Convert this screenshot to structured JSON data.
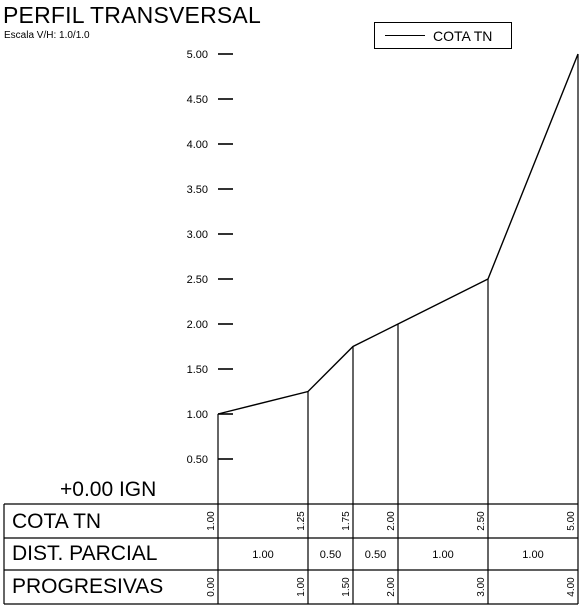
{
  "header": {
    "title": "PERFIL TRANSVERSAL",
    "scale": "Escala V/H: 1.0/1.0"
  },
  "datum_label": "+0.00 IGN",
  "legend": {
    "entry": "COTA TN"
  },
  "table": {
    "row_labels": [
      "COTA TN",
      "DIST. PARCIAL",
      "PROGRESIVAS"
    ],
    "cota_tn": [
      "1.00",
      "1.25",
      "1.75",
      "2.00",
      "2.50",
      "5.00"
    ],
    "dist_parcial": [
      "1.00",
      "0.50",
      "0.50",
      "1.00",
      "1.00"
    ],
    "progresivas": [
      "0.00",
      "1.00",
      "1.50",
      "2.00",
      "3.00",
      "4.00"
    ]
  },
  "chart_data": {
    "type": "line",
    "series": [
      {
        "name": "COTA TN",
        "x": [
          0.0,
          1.0,
          1.5,
          2.0,
          3.0,
          4.0
        ],
        "y": [
          1.0,
          1.25,
          1.75,
          2.0,
          2.5,
          5.0
        ]
      }
    ],
    "ylim": [
      0.0,
      5.0
    ],
    "xlim": [
      0.0,
      4.0
    ],
    "yticks": [
      "0.50",
      "1.00",
      "1.50",
      "2.00",
      "2.50",
      "3.00",
      "3.50",
      "4.00",
      "4.50",
      "5.00"
    ],
    "grid": false,
    "legend_position": "top-right"
  }
}
